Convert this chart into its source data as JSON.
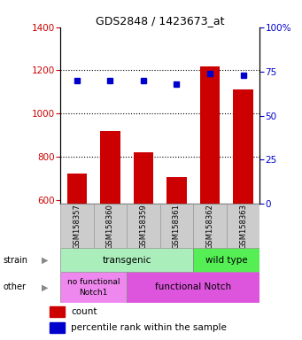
{
  "title": "GDS2848 / 1423673_at",
  "samples": [
    "GSM158357",
    "GSM158360",
    "GSM158359",
    "GSM158361",
    "GSM158362",
    "GSM158363"
  ],
  "counts": [
    720,
    920,
    820,
    705,
    1220,
    1110
  ],
  "percentiles": [
    70,
    70,
    70,
    68,
    74,
    73
  ],
  "ylim_left": [
    580,
    1400
  ],
  "ylim_right": [
    0,
    100
  ],
  "yticks_left": [
    600,
    800,
    1000,
    1200,
    1400
  ],
  "yticks_right": [
    0,
    25,
    50,
    75,
    100
  ],
  "bar_color": "#cc0000",
  "marker_color": "#0000cc",
  "transgenic_color": "#aaeebb",
  "wildtype_color": "#55ee55",
  "no_notch_color": "#ee88ee",
  "notch_color": "#dd55dd",
  "legend_count_label": "count",
  "legend_pct_label": "percentile rank within the sample",
  "tick_label_color_left": "#cc0000",
  "tick_label_color_right": "#0000cc",
  "dotted_lines": [
    800,
    1000,
    1200
  ],
  "strain_arrow_text": "strain",
  "other_arrow_text": "other"
}
